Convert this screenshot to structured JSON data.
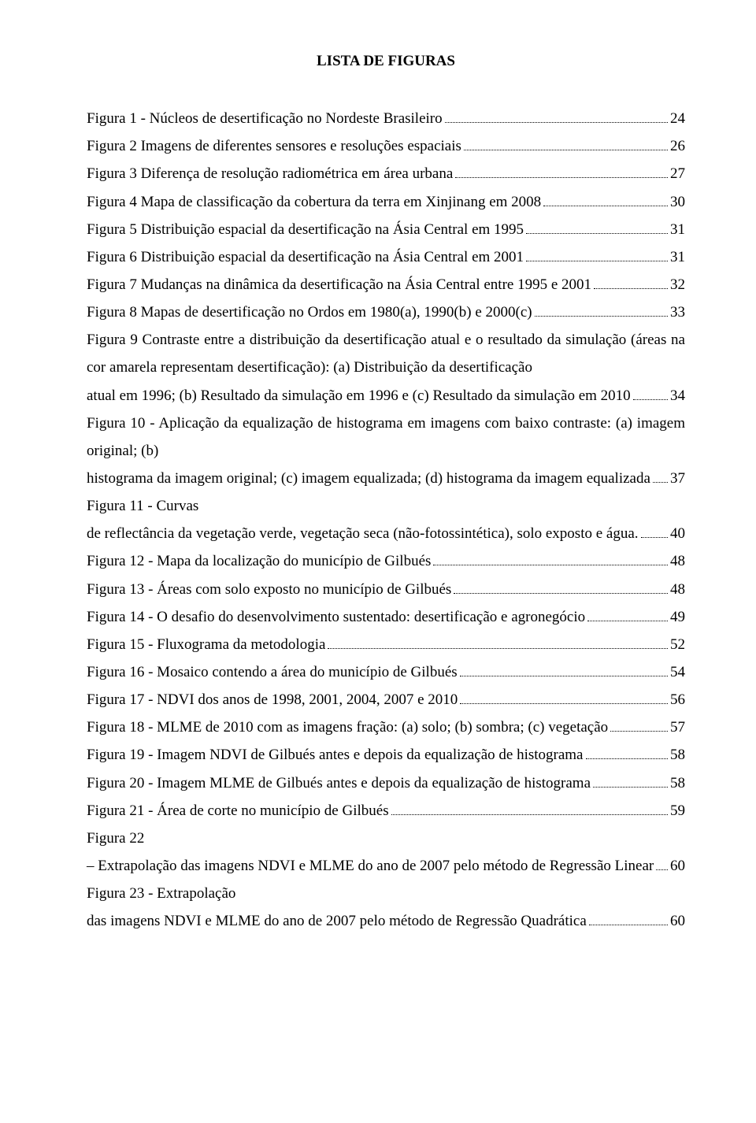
{
  "title": "LISTA DE FIGURAS",
  "font": {
    "family": "Times New Roman",
    "size_pt": 12,
    "color": "#000000"
  },
  "page_bg": "#ffffff",
  "entries": [
    {
      "text": "Figura 1 - Núcleos de desertificação no Nordeste Brasileiro",
      "page": "24"
    },
    {
      "text": "Figura 2 Imagens de diferentes sensores e resoluções espaciais",
      "page": "26"
    },
    {
      "text": "Figura 3 Diferença de resolução radiométrica em área urbana",
      "page": "27"
    },
    {
      "text": "Figura 4 Mapa de classificação da cobertura da terra em Xinjinang em 2008",
      "page": "30"
    },
    {
      "text": "Figura 5 Distribuição espacial da desertificação na Ásia Central em 1995",
      "page": "31"
    },
    {
      "text": "Figura 6 Distribuição espacial da desertificação na Ásia Central em 2001",
      "page": "31"
    },
    {
      "text": "Figura 7 Mudanças na dinâmica da desertificação na Ásia Central entre 1995 e 2001",
      "page": "32"
    },
    {
      "text": "Figura 8 Mapas de desertificação no Ordos em 1980(a), 1990(b) e 2000(c)",
      "page": "33"
    },
    {
      "text": "Figura 9 Contraste entre a distribuição da desertificação atual e o resultado da simulação (áreas na cor amarela representam desertificação): (a) Distribuição da desertificação atual em 1996; (b) Resultado da simulação em 1996 e (c) Resultado da simulação em 2010",
      "page": "34"
    },
    {
      "text": "Figura 10 - Aplicação da equalização de histograma em imagens com baixo contraste: (a) imagem original; (b) histograma da imagem original; (c) imagem equalizada; (d) histograma da imagem equalizada",
      "page": "37"
    },
    {
      "text": "Figura 11 - Curvas de reflectância da vegetação verde, vegetação seca (não-fotossintética), solo exposto e água.",
      "page": "40"
    },
    {
      "text": "Figura 12 - Mapa da localização do município de Gilbués",
      "page": "48"
    },
    {
      "text": "Figura 13 - Áreas com solo exposto no município de Gilbués",
      "page": "48"
    },
    {
      "text": "Figura 14 - O desafio do desenvolvimento sustentado: desertificação e agronegócio",
      "page": "49"
    },
    {
      "text": "Figura 15 - Fluxograma da metodologia",
      "page": "52"
    },
    {
      "text": "Figura 16 - Mosaico contendo a área do município de Gilbués",
      "page": "54"
    },
    {
      "text": "Figura 17 - NDVI dos anos de 1998, 2001, 2004, 2007 e 2010",
      "page": "56"
    },
    {
      "text": "Figura 18 - MLME de 2010 com as imagens fração: (a) solo; (b) sombra; (c) vegetação",
      "page": "57"
    },
    {
      "text": "Figura 19 - Imagem NDVI de Gilbués antes e depois da equalização de histograma",
      "page": "58"
    },
    {
      "text": "Figura 20 - Imagem MLME de Gilbués antes e depois da equalização de histograma",
      "page": "58"
    },
    {
      "text": "Figura 21 - Área de corte no município de Gilbués",
      "page": "59"
    },
    {
      "text": "Figura 22 – Extrapolação das imagens NDVI e MLME do ano de 2007 pelo método de Regressão Linear",
      "page": "60"
    },
    {
      "text": "Figura 23 - Extrapolação das imagens NDVI e MLME do ano de 2007 pelo método de Regressão Quadrática",
      "page": "60"
    }
  ]
}
